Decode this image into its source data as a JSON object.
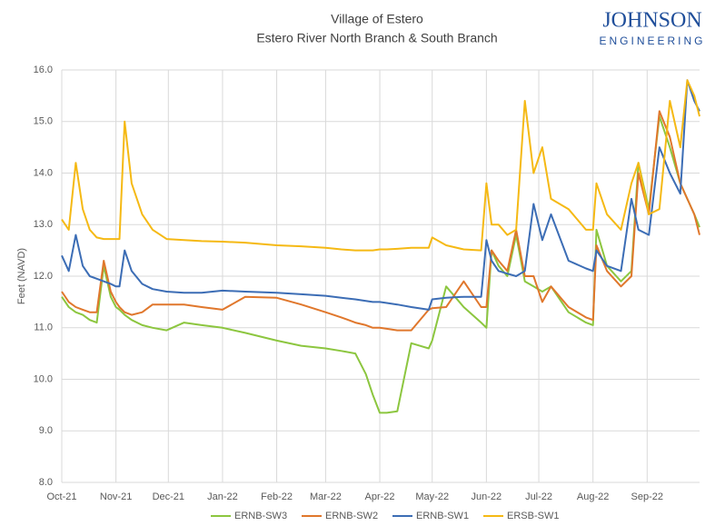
{
  "chart_data": {
    "type": "line",
    "title": "Village of Estero",
    "subtitle": "Estero River North Branch & South Branch",
    "logo": {
      "top": "JOHNSON",
      "bottom": "ENGINEERING"
    },
    "ylabel": "Feet (NAVD)",
    "xlim": [
      0,
      365
    ],
    "xticks": [
      {
        "value": 0,
        "label": "Oct-21"
      },
      {
        "value": 31,
        "label": "Nov-21"
      },
      {
        "value": 61,
        "label": "Dec-21"
      },
      {
        "value": 92,
        "label": "Jan-22"
      },
      {
        "value": 123,
        "label": "Feb-22"
      },
      {
        "value": 151,
        "label": "Mar-22"
      },
      {
        "value": 182,
        "label": "Apr-22"
      },
      {
        "value": 212,
        "label": "May-22"
      },
      {
        "value": 243,
        "label": "Jun-22"
      },
      {
        "value": 273,
        "label": "Jul-22"
      },
      {
        "value": 304,
        "label": "Aug-22"
      },
      {
        "value": 335,
        "label": "Sep-22"
      }
    ],
    "ylim": [
      8,
      16
    ],
    "yticks": [
      {
        "value": 8,
        "label": "8.0"
      },
      {
        "value": 9,
        "label": "9.0"
      },
      {
        "value": 10,
        "label": "10.0"
      },
      {
        "value": 11,
        "label": "11.0"
      },
      {
        "value": 12,
        "label": "12.0"
      },
      {
        "value": 13,
        "label": "13.0"
      },
      {
        "value": 14,
        "label": "14.0"
      },
      {
        "value": 15,
        "label": "15.0"
      },
      {
        "value": 16,
        "label": "16.0"
      }
    ],
    "grid": true,
    "legend": "bottom",
    "x": [
      0,
      4,
      8,
      12,
      16,
      20,
      24,
      28,
      31,
      33,
      36,
      40,
      46,
      52,
      60,
      70,
      80,
      92,
      105,
      123,
      137,
      151,
      160,
      168,
      174,
      178,
      182,
      186,
      192,
      200,
      210,
      212,
      220,
      230,
      240,
      243,
      246,
      250,
      255,
      260,
      265,
      270,
      275,
      280,
      290,
      300,
      304,
      306,
      312,
      320,
      326,
      330,
      336,
      342,
      348,
      354,
      358,
      362,
      365
    ],
    "series": [
      {
        "name": "ERNB-SW3",
        "color": "#8cc63f",
        "values": [
          11.6,
          11.4,
          11.3,
          11.25,
          11.15,
          11.1,
          12.2,
          11.6,
          11.4,
          11.35,
          11.25,
          11.15,
          11.05,
          11.0,
          10.95,
          11.1,
          11.05,
          11.0,
          10.9,
          10.75,
          10.65,
          10.6,
          10.55,
          10.5,
          10.1,
          9.7,
          9.35,
          9.35,
          9.38,
          10.7,
          10.6,
          10.75,
          11.8,
          11.4,
          11.1,
          11.0,
          12.5,
          12.2,
          12.0,
          12.8,
          11.9,
          11.8,
          11.7,
          11.8,
          11.3,
          11.1,
          11.05,
          12.9,
          12.2,
          11.9,
          12.1,
          14.2,
          13.3,
          15.1,
          14.5,
          13.8,
          13.5,
          13.2,
          12.95
        ]
      },
      {
        "name": "ERNB-SW2",
        "color": "#e0772c",
        "values": [
          11.7,
          11.5,
          11.4,
          11.35,
          11.3,
          11.3,
          12.3,
          11.7,
          11.5,
          11.4,
          11.3,
          11.25,
          11.3,
          11.45,
          11.45,
          11.45,
          11.4,
          11.35,
          11.6,
          11.58,
          11.45,
          11.3,
          11.2,
          11.1,
          11.05,
          11.0,
          11.0,
          10.98,
          10.95,
          10.95,
          11.35,
          11.38,
          11.4,
          11.9,
          11.4,
          11.4,
          12.5,
          12.3,
          12.1,
          12.9,
          12.0,
          12.0,
          11.5,
          11.8,
          11.4,
          11.2,
          11.15,
          12.6,
          12.1,
          11.8,
          12.0,
          14.0,
          13.2,
          15.2,
          14.7,
          13.8,
          13.5,
          13.2,
          12.8
        ]
      },
      {
        "name": "ERNB-SW1",
        "color": "#3c6db5",
        "values": [
          12.4,
          12.1,
          12.8,
          12.2,
          12.0,
          11.95,
          11.9,
          11.85,
          11.8,
          11.8,
          12.5,
          12.1,
          11.85,
          11.75,
          11.7,
          11.68,
          11.68,
          11.72,
          11.7,
          11.68,
          11.65,
          11.62,
          11.58,
          11.55,
          11.52,
          11.5,
          11.5,
          11.48,
          11.45,
          11.4,
          11.35,
          11.55,
          11.58,
          11.6,
          11.6,
          12.7,
          12.3,
          12.1,
          12.05,
          12.0,
          12.1,
          13.4,
          12.7,
          13.2,
          12.3,
          12.15,
          12.1,
          12.5,
          12.2,
          12.1,
          13.5,
          12.9,
          12.8,
          14.5,
          14.0,
          13.6,
          15.8,
          15.4,
          15.2
        ]
      },
      {
        "name": "ERSB-SW1",
        "color": "#f5b914",
        "values": [
          13.1,
          12.9,
          14.2,
          13.3,
          12.9,
          12.75,
          12.72,
          12.72,
          12.72,
          12.72,
          15.0,
          13.8,
          13.2,
          12.9,
          12.72,
          12.7,
          12.68,
          12.67,
          12.65,
          12.6,
          12.58,
          12.55,
          12.52,
          12.5,
          12.5,
          12.5,
          12.52,
          12.52,
          12.53,
          12.55,
          12.55,
          12.75,
          12.6,
          12.52,
          12.5,
          13.8,
          13.0,
          13.0,
          12.8,
          12.9,
          15.4,
          14.0,
          14.5,
          13.5,
          13.3,
          12.9,
          12.9,
          13.8,
          13.2,
          12.9,
          13.8,
          14.2,
          13.2,
          13.3,
          15.4,
          14.5,
          15.8,
          15.5,
          15.1
        ]
      }
    ]
  }
}
